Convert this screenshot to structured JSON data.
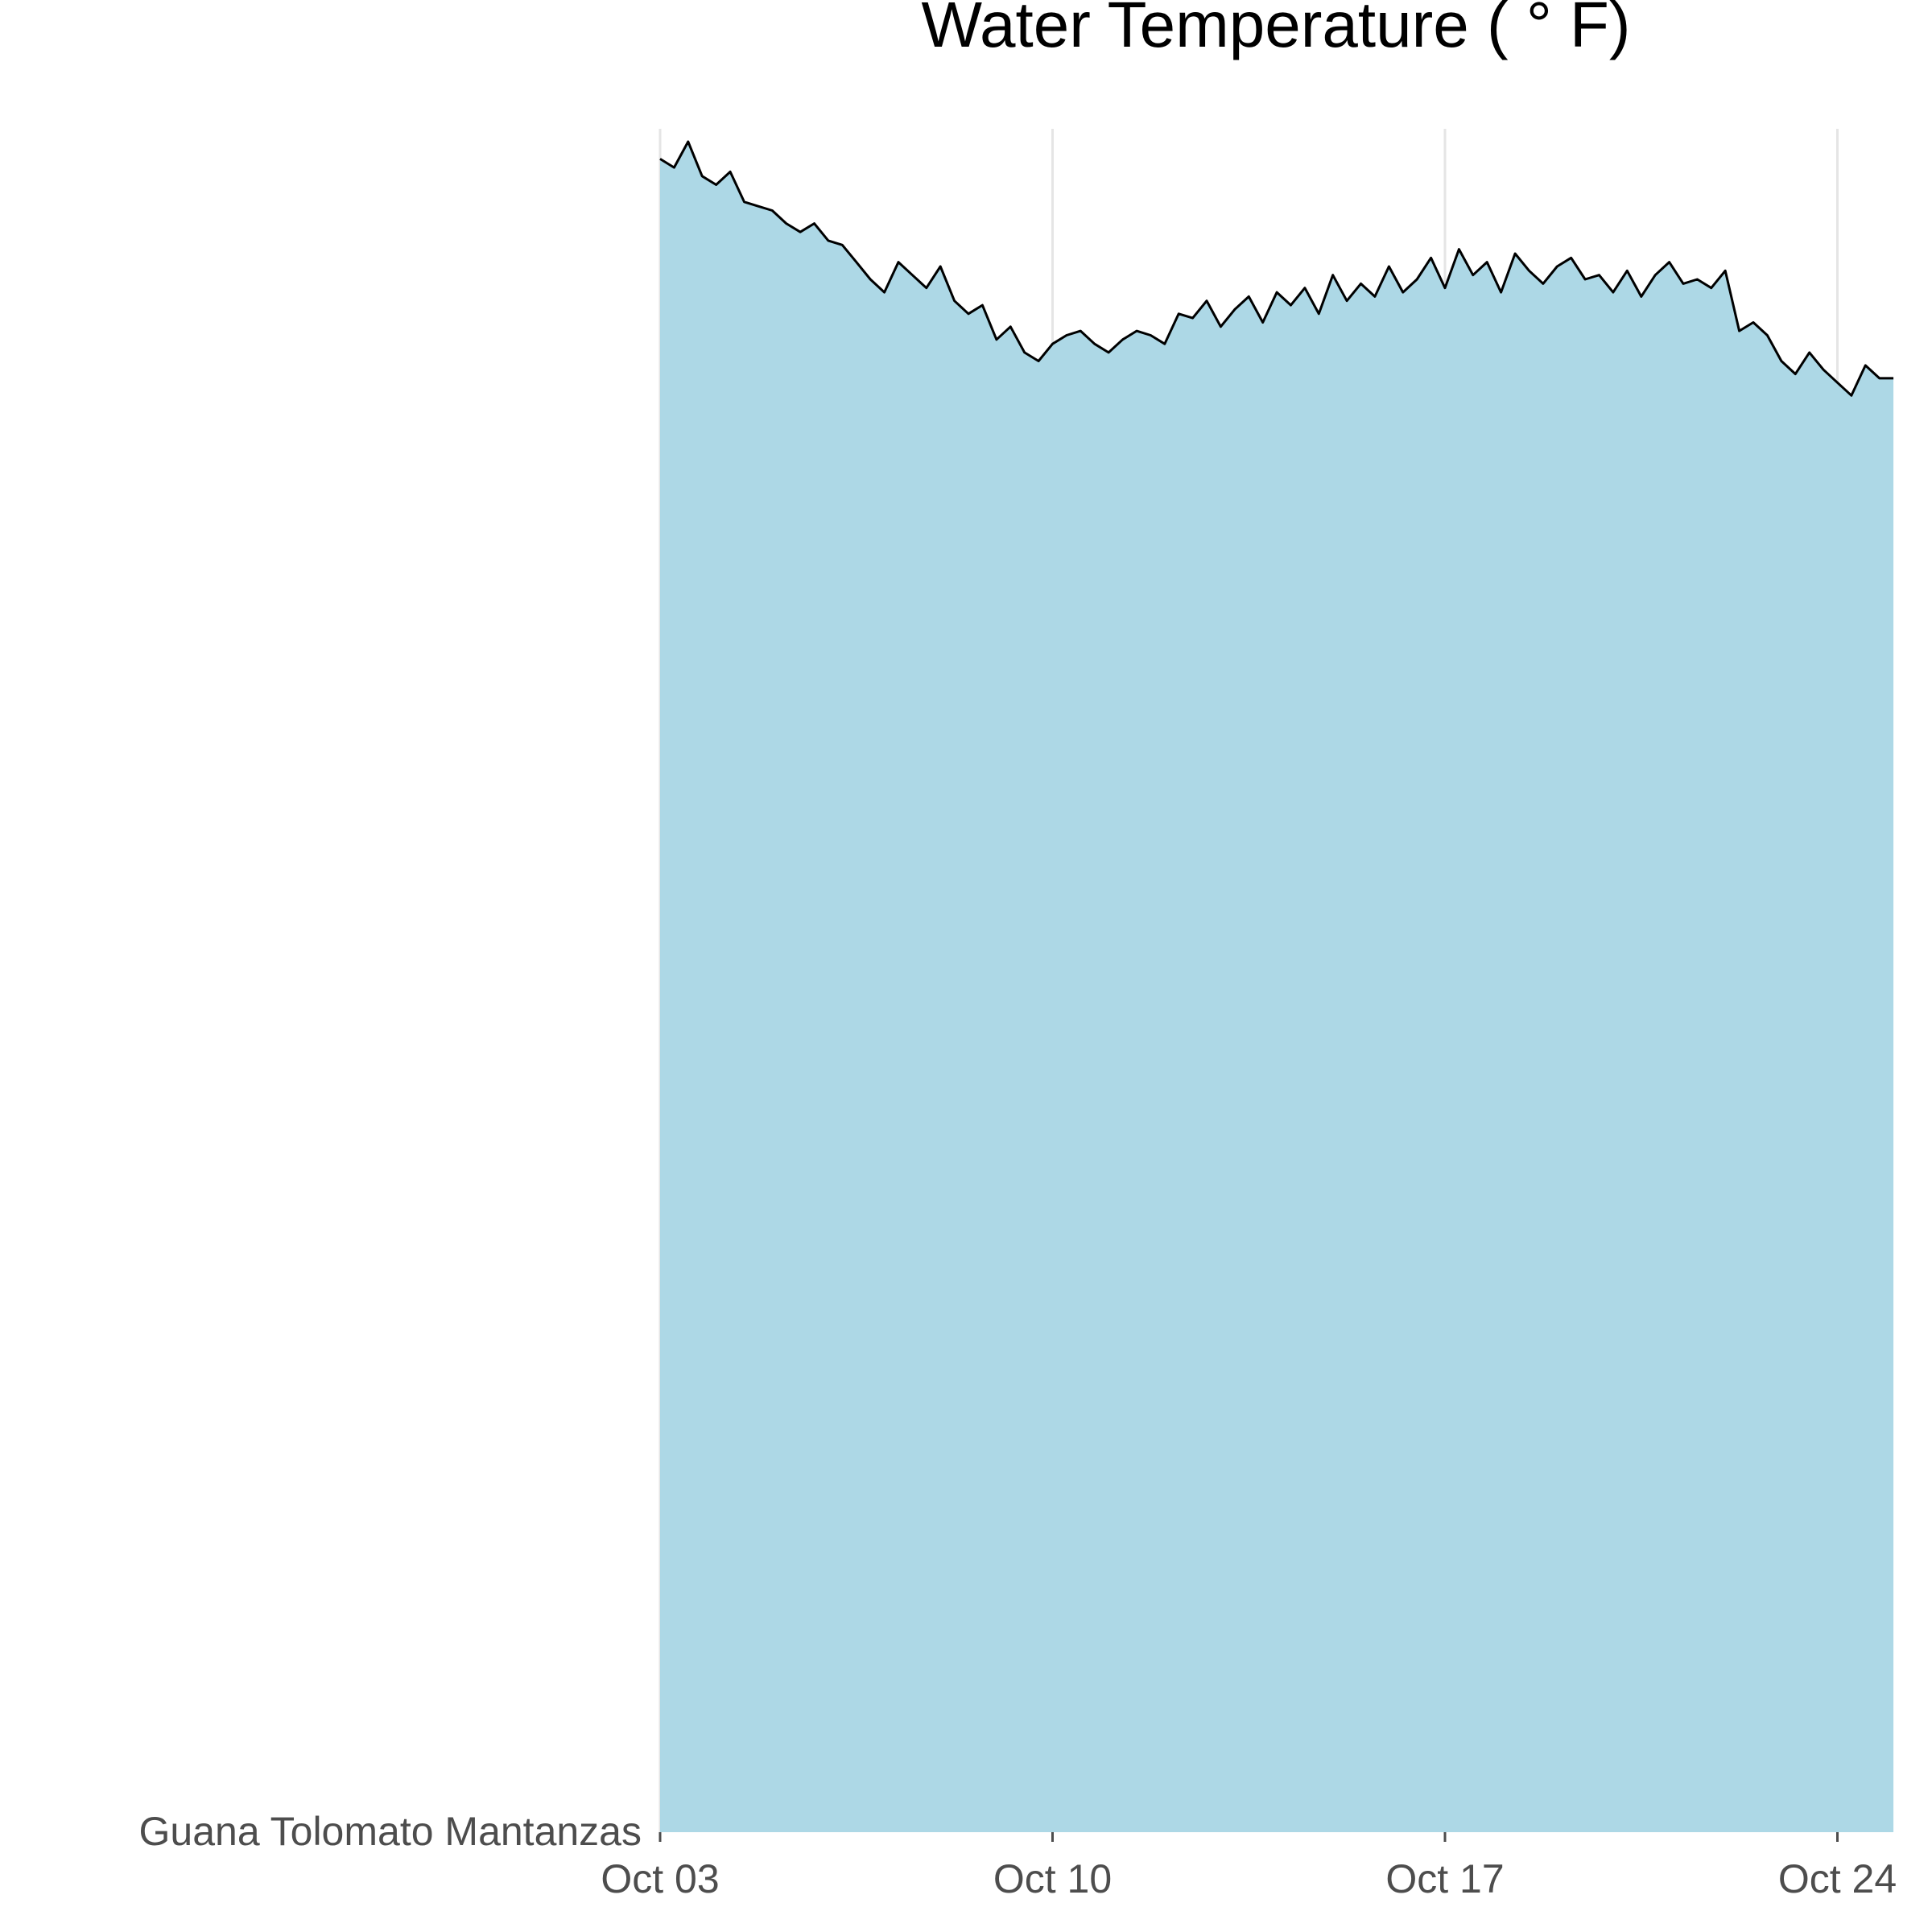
{
  "chart_data": {
    "type": "area",
    "title": "Water Temperature ( ° F)",
    "xlabel": "",
    "ylabel": "",
    "y_category_label": "Guana Tolomato Mantanzas",
    "x_tick_labels": [
      "Oct 03",
      "Oct 10",
      "Oct 17",
      "Oct 24"
    ],
    "x_ticks": [
      "Oct 03",
      "Oct 10",
      "Oct 17",
      "Oct 24"
    ],
    "xlim": [
      "Oct 03",
      "Oct 25"
    ],
    "grid": "vertical",
    "fill_color": "#add8e6",
    "line_color": "#000000",
    "series": [
      {
        "x": [
          "Oct 03 00:00",
          "Oct 03 06:00",
          "Oct 03 12:00",
          "Oct 03 18:00",
          "Oct 04 00:00",
          "Oct 04 06:00",
          "Oct 04 12:00",
          "Oct 04 18:00",
          "Oct 05 00:00",
          "Oct 05 06:00",
          "Oct 05 12:00",
          "Oct 05 18:00",
          "Oct 06 00:00",
          "Oct 06 06:00",
          "Oct 06 12:00",
          "Oct 06 18:00",
          "Oct 07 00:00",
          "Oct 07 06:00",
          "Oct 07 12:00",
          "Oct 07 18:00",
          "Oct 08 00:00",
          "Oct 08 06:00",
          "Oct 08 12:00",
          "Oct 08 18:00",
          "Oct 09 00:00",
          "Oct 09 06:00",
          "Oct 09 12:00",
          "Oct 09 18:00",
          "Oct 10 00:00",
          "Oct 10 06:00",
          "Oct 10 12:00",
          "Oct 10 18:00",
          "Oct 11 00:00",
          "Oct 11 06:00",
          "Oct 11 12:00",
          "Oct 11 18:00",
          "Oct 12 00:00",
          "Oct 12 06:00",
          "Oct 12 12:00",
          "Oct 12 18:00",
          "Oct 13 00:00",
          "Oct 13 06:00",
          "Oct 13 12:00",
          "Oct 13 18:00",
          "Oct 14 00:00",
          "Oct 14 06:00",
          "Oct 14 12:00",
          "Oct 14 18:00",
          "Oct 15 00:00",
          "Oct 15 06:00",
          "Oct 15 12:00",
          "Oct 15 18:00",
          "Oct 16 00:00",
          "Oct 16 06:00",
          "Oct 16 12:00",
          "Oct 16 18:00",
          "Oct 17 00:00",
          "Oct 17 06:00",
          "Oct 17 12:00",
          "Oct 17 18:00",
          "Oct 18 00:00",
          "Oct 18 06:00",
          "Oct 18 12:00",
          "Oct 18 18:00",
          "Oct 19 00:00",
          "Oct 19 06:00",
          "Oct 19 12:00",
          "Oct 19 18:00",
          "Oct 20 00:00",
          "Oct 20 06:00",
          "Oct 20 12:00",
          "Oct 20 18:00",
          "Oct 21 00:00",
          "Oct 21 06:00",
          "Oct 21 12:00",
          "Oct 21 18:00",
          "Oct 22 00:00",
          "Oct 22 06:00",
          "Oct 22 12:00",
          "Oct 22 18:00",
          "Oct 23 00:00",
          "Oct 23 06:00",
          "Oct 23 12:00",
          "Oct 23 18:00",
          "Oct 24 00:00",
          "Oct 24 06:00",
          "Oct 24 12:00",
          "Oct 24 18:00",
          "Oct 25 00:00"
        ],
        "y": [
          78.9,
          78.7,
          79.3,
          78.5,
          78.3,
          78.6,
          77.9,
          77.8,
          77.7,
          77.4,
          77.2,
          77.4,
          77.0,
          76.9,
          76.5,
          76.1,
          75.8,
          76.5,
          76.2,
          75.9,
          76.4,
          75.6,
          75.3,
          75.5,
          74.7,
          75.0,
          74.4,
          74.2,
          74.6,
          74.8,
          74.9,
          74.6,
          74.4,
          74.7,
          74.9,
          74.8,
          74.6,
          75.3,
          75.2,
          75.6,
          75.0,
          75.4,
          75.7,
          75.1,
          75.8,
          75.5,
          75.9,
          75.3,
          76.2,
          75.6,
          76.0,
          75.7,
          76.4,
          75.8,
          76.1,
          76.6,
          75.9,
          76.8,
          76.2,
          76.5,
          75.8,
          76.7,
          76.3,
          76.0,
          76.4,
          76.6,
          76.1,
          76.2,
          75.8,
          76.3,
          75.7,
          76.2,
          76.5,
          76.0,
          76.1,
          75.9,
          76.3,
          74.9,
          75.1,
          74.8,
          74.2,
          73.9,
          74.4,
          74.0,
          73.7,
          73.4,
          74.1,
          73.8,
          73.8
        ]
      }
    ]
  }
}
